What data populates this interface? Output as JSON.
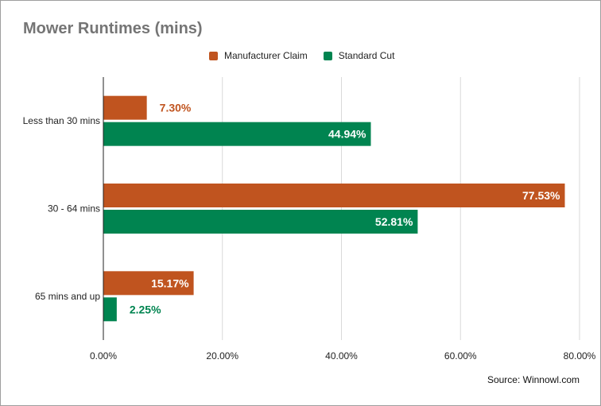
{
  "chart_data": {
    "type": "bar",
    "orientation": "horizontal",
    "title": "Mower Runtimes (mins)",
    "categories": [
      "Less than 30 mins",
      "30 - 64 mins",
      "65 mins and up"
    ],
    "series": [
      {
        "name": "Manufacturer Claim",
        "color": "#c0541f",
        "values": [
          7.3,
          77.53,
          15.17
        ],
        "labels": [
          "7.30%",
          "77.53%",
          "15.17%"
        ]
      },
      {
        "name": "Standard Cut",
        "color": "#008450",
        "values": [
          44.94,
          52.81,
          2.25
        ],
        "labels": [
          "44.94%",
          "52.81%",
          "2.25%"
        ]
      }
    ],
    "x_ticks": [
      0,
      20,
      40,
      60,
      80
    ],
    "x_tick_labels": [
      "0.00%",
      "20.00%",
      "40.00%",
      "60.00%",
      "80.00%"
    ],
    "xlim": [
      0,
      80
    ],
    "grid": true,
    "legend": "top",
    "xlabel": "",
    "ylabel": ""
  },
  "source": "Source: Winnowl.com"
}
